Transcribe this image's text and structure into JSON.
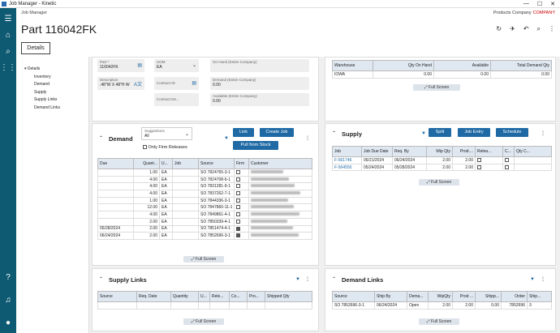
{
  "window": {
    "title": "Job Manager - Kinetic",
    "min": "—",
    "max": "☐",
    "close": "✕"
  },
  "breadcrumb": "Job Manager",
  "company": {
    "text": "Products Company",
    "code": "COMPANY"
  },
  "page": {
    "title": "Part 116042FK",
    "tab": "Details"
  },
  "nav": {
    "title": "Details",
    "items": [
      "Inventory",
      "Demand",
      "Supply",
      "Supply Links",
      "Demand Links"
    ]
  },
  "part_form": {
    "part": {
      "label": "Part *",
      "value": "116042FK"
    },
    "description": {
      "label": "Description",
      "value": ".48\"W X 48\"H W"
    },
    "uom": {
      "label": "UOM",
      "value": "EA"
    },
    "contract_id": {
      "label": "Contract ID"
    },
    "contract_desc": {
      "label": "Contract De..."
    },
    "on_hand": {
      "label": "On Hand (Entire Company)",
      "value": ""
    },
    "demand": {
      "label": "Demand (Entire Company)",
      "value": "0.00"
    },
    "available": {
      "label": "Available (Entire Company)",
      "value": "0.00"
    }
  },
  "warehouse_grid": {
    "headers": [
      "Warehouse",
      "Qty On Hand",
      "Available",
      "Total Demand Qty"
    ],
    "rows": [
      [
        "IOWA",
        "0.00",
        "0.00",
        "0.00"
      ]
    ],
    "fullscreen": "Full Screen"
  },
  "demand": {
    "title": "Demand",
    "suggestions": {
      "label": "Suggestions",
      "value": "All"
    },
    "only_firm": "Only Firm Releases",
    "buttons": {
      "link": "Link",
      "create_job": "Create Job",
      "pull_from_stock": "Pull from Stock"
    },
    "headers": [
      "Due",
      "Quant...",
      "U...",
      "Job",
      "Source",
      "Firm",
      "Customer"
    ],
    "rows": [
      {
        "due": "",
        "qty": "1.00",
        "uom": "EA",
        "job": "",
        "source": "SO 7824765-3-1",
        "firm": false
      },
      {
        "due": "",
        "qty": "4.00",
        "uom": "EA",
        "job": "",
        "source": "SO 7824708-6-1",
        "firm": false
      },
      {
        "due": "",
        "qty": "4.00",
        "uom": "EA",
        "job": "",
        "source": "SO 7831281-9-1",
        "firm": false
      },
      {
        "due": "",
        "qty": "4.00",
        "uom": "EA",
        "job": "",
        "source": "SO 7837262-7-1",
        "firm": false
      },
      {
        "due": "",
        "qty": "1.00",
        "uom": "EA",
        "job": "",
        "source": "SO 7844336-3-1",
        "firm": false
      },
      {
        "due": "",
        "qty": "12.00",
        "uom": "EA",
        "job": "",
        "source": "SO 7847860-11-1",
        "firm": false
      },
      {
        "due": "",
        "qty": "4.00",
        "uom": "EA",
        "job": "",
        "source": "SO 7849861-4-1",
        "firm": false
      },
      {
        "due": "",
        "qty": "2.00",
        "uom": "EA",
        "job": "",
        "source": "SO 7850339-4-1",
        "firm": false
      },
      {
        "due": "05/28/2024",
        "qty": "2.00",
        "uom": "EA",
        "job": "",
        "source": "SO 7851474-4-1",
        "firm": true
      },
      {
        "due": "06/24/2024",
        "qty": "2.00",
        "uom": "EA",
        "job": "",
        "source": "SO 7852696-3-1",
        "firm": true
      }
    ],
    "fullscreen": "Full Screen"
  },
  "supply": {
    "title": "Supply",
    "buttons": {
      "split": "Split",
      "job_entry": "Job Entry",
      "schedule": "Schedule"
    },
    "headers": [
      "Job",
      "Job Due Date",
      "Req. By",
      "Wip Qty",
      "Prod....",
      "Relea...",
      "C...",
      "Qty C..."
    ],
    "rows": [
      {
        "job": "F-561746",
        "due": "06/21/2024",
        "req": "06/24/2024",
        "wip": "2.00",
        "prod": "2.00"
      },
      {
        "job": "F-564550",
        "due": "05/24/2024",
        "req": "05/28/2024",
        "wip": "2.00",
        "prod": "2.00"
      }
    ],
    "fullscreen": "Full Screen"
  },
  "supply_links": {
    "title": "Supply Links",
    "headers": [
      "Source",
      "Req. Date",
      "Quantity",
      "U...",
      "Rele...",
      "Co...",
      "Pro...",
      "Shipped Qty"
    ],
    "fullscreen": "Full Screen"
  },
  "demand_links": {
    "title": "Demand Links",
    "headers": [
      "Source",
      "Ship By",
      "Dema...",
      "WipQty",
      "Prod ...",
      "Shipp...",
      "Order",
      "Ship..."
    ],
    "rows": [
      [
        "SO 7852696-3-1",
        "06/24/2024",
        "Open",
        "2.00",
        "2.00",
        "0.00",
        "7852696",
        "3"
      ]
    ],
    "fullscreen": "Full Screen"
  }
}
